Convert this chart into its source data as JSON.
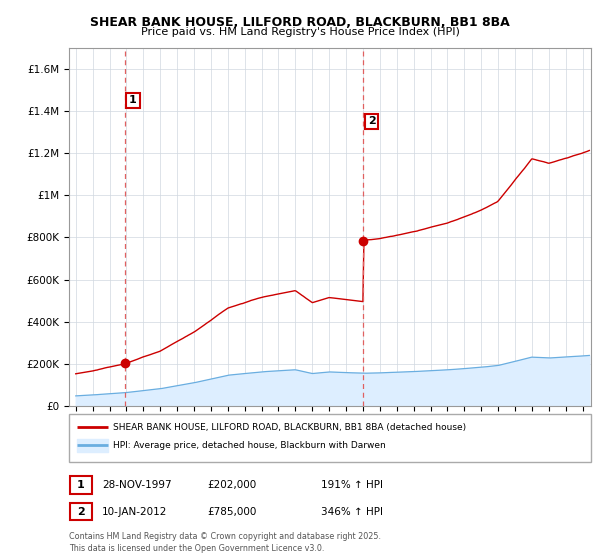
{
  "title1": "SHEAR BANK HOUSE, LILFORD ROAD, BLACKBURN, BB1 8BA",
  "title2": "Price paid vs. HM Land Registry's House Price Index (HPI)",
  "sale1_date_label": "28-NOV-1997",
  "sale1_price": 202000,
  "sale2_date_label": "10-JAN-2012",
  "sale2_price": 785000,
  "sale1_hpi_text": "191% ↑ HPI",
  "sale2_hpi_text": "346% ↑ HPI",
  "sale1_year": 1997.91,
  "sale2_year": 2012.03,
  "red_line_color": "#cc0000",
  "blue_line_color": "#6aaee0",
  "blue_fill_color": "#ddeeff",
  "dashed_line_color": "#e06060",
  "marker_color": "#cc0000",
  "legend_red_label": "SHEAR BANK HOUSE, LILFORD ROAD, BLACKBURN, BB1 8BA (detached house)",
  "legend_blue_label": "HPI: Average price, detached house, Blackburn with Darwen",
  "footer_text": "Contains HM Land Registry data © Crown copyright and database right 2025.\nThis data is licensed under the Open Government Licence v3.0.",
  "ylim_max": 1700000,
  "yticks": [
    0,
    200000,
    400000,
    600000,
    800000,
    1000000,
    1200000,
    1400000,
    1600000
  ],
  "ytick_labels": [
    "£0",
    "£200K",
    "£400K",
    "£600K",
    "£800K",
    "£1M",
    "£1.2M",
    "£1.4M",
    "£1.6M"
  ],
  "xmin": 1994.6,
  "xmax": 2025.5,
  "num_points": 500
}
